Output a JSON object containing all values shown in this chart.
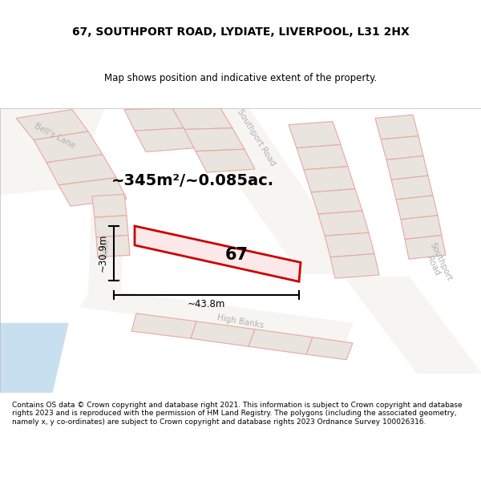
{
  "title": "67, SOUTHPORT ROAD, LYDIATE, LIVERPOOL, L31 2HX",
  "subtitle": "Map shows position and indicative extent of the property.",
  "footer": "Contains OS data © Crown copyright and database right 2021. This information is subject to Crown copyright and database rights 2023 and is reproduced with the permission of HM Land Registry. The polygons (including the associated geometry, namely x, y co-ordinates) are subject to Crown copyright and database rights 2023 Ordnance Survey 100026316.",
  "area_label": "~345m²/~0.085ac.",
  "width_label": "~43.8m",
  "height_label": "~30.9m",
  "number_label": "67",
  "bg_color": "#eeebe6",
  "road_fill_color": "#f7f5f2",
  "block_fill_color": "#e9e4de",
  "street_line_color": "#e8a8a8",
  "highlight_color": "#cc0000",
  "highlight_fill": "#fce8e8",
  "water_color": "#c8dff0",
  "road_label_color": "#b0b0b0",
  "title_fontsize": 10,
  "subtitle_fontsize": 8.5,
  "footer_fontsize": 6.5,
  "area_fontsize": 14,
  "number_fontsize": 15,
  "dim_fontsize": 8.5,
  "road_fontsize": 7.5
}
